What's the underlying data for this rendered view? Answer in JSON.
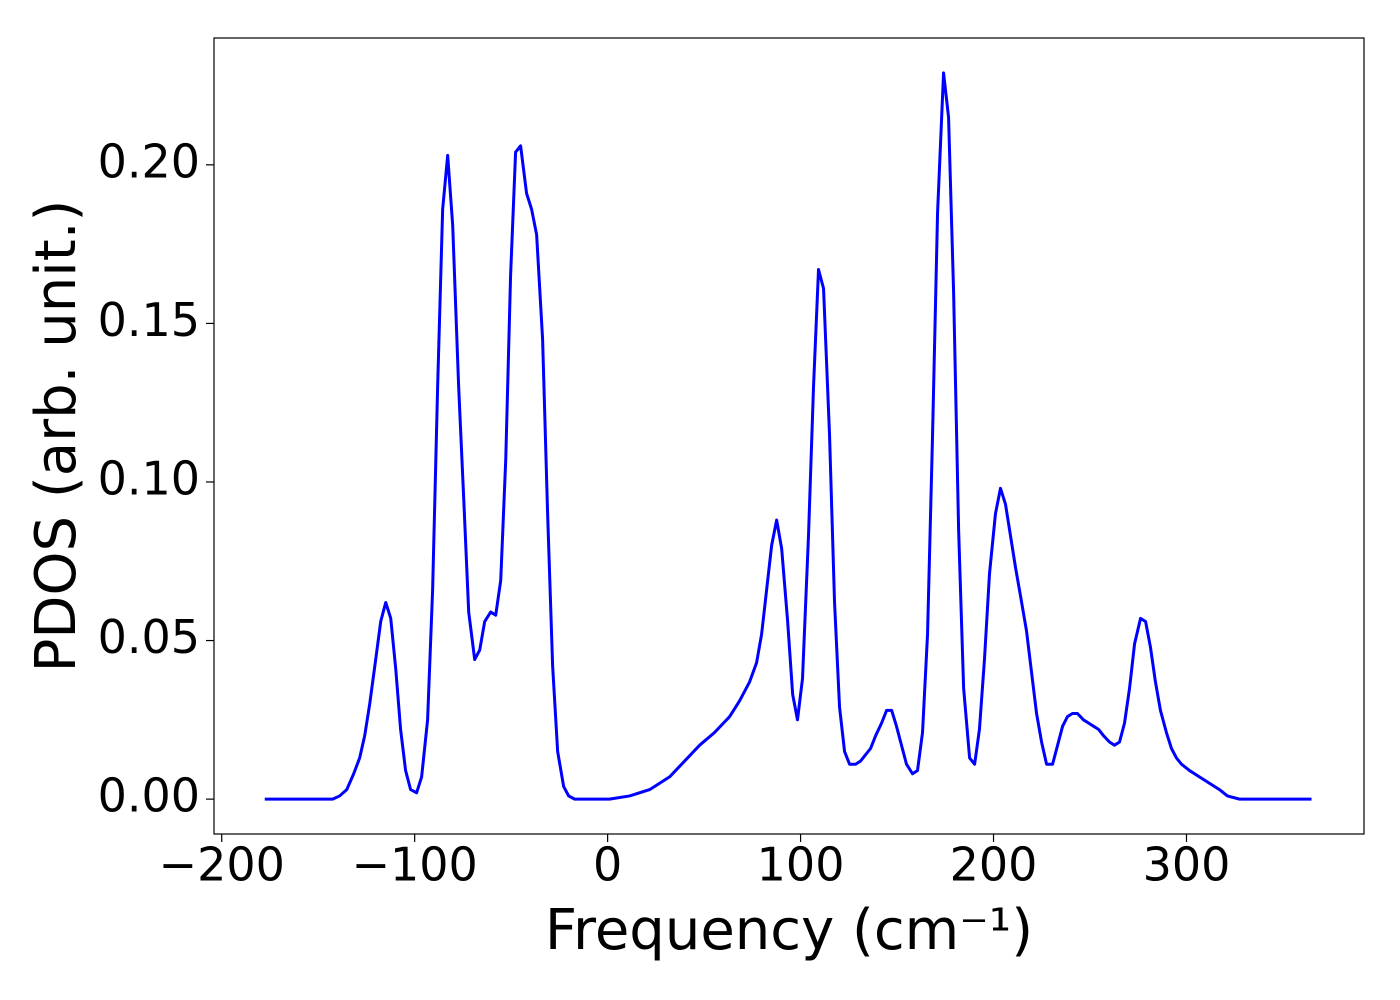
{
  "chart_data": {
    "type": "line",
    "xlabel": "Frequency (cm⁻¹)",
    "ylabel": "PDOS (arb. unit.)",
    "color": "#0000ff",
    "xlim": [
      -204,
      392
    ],
    "ylim": [
      -0.011,
      0.24
    ],
    "xticks": [
      {
        "value": -200,
        "label": "−200"
      },
      {
        "value": -100,
        "label": "−100"
      },
      0,
      100,
      200,
      300
    ],
    "yticks": [
      {
        "value": 0,
        "label": "0.00"
      },
      {
        "value": 0.05,
        "label": "0.05"
      },
      {
        "value": 0.1,
        "label": "0.10"
      },
      {
        "value": 0.15,
        "label": "0.15"
      },
      {
        "value": 0.2,
        "label": "0.20"
      }
    ],
    "grid": false,
    "x": [
      -177.7,
      -142.5,
      -138.9,
      -135.2,
      -131.6,
      -128.5,
      -125.9,
      -123.3,
      -120.2,
      -117.6,
      -115.0,
      -112.4,
      -109.8,
      -107.3,
      -104.7,
      -102.1,
      -99.0,
      -96.4,
      -93.3,
      -90.7,
      -88.1,
      -85.5,
      -82.9,
      -80.3,
      -77.2,
      -74.6,
      -72.0,
      -68.9,
      -66.3,
      -63.7,
      -60.6,
      -58.0,
      -55.4,
      -52.8,
      -50.3,
      -47.7,
      -45.1,
      -42.0,
      -39.4,
      -36.8,
      -33.7,
      -31.1,
      -28.5,
      -25.9,
      -22.8,
      -20.2,
      -17.1,
      1.0,
      11.4,
      21.8,
      32.1,
      39.9,
      47.7,
      55.4,
      63.2,
      68.4,
      73.6,
      77.2,
      79.8,
      82.4,
      85.0,
      87.6,
      90.2,
      93.3,
      95.9,
      98.4,
      101.0,
      104.1,
      106.7,
      109.3,
      111.9,
      115.0,
      117.6,
      120.2,
      122.8,
      125.4,
      128.5,
      131.1,
      133.7,
      136.3,
      138.9,
      142.0,
      144.6,
      147.2,
      149.7,
      152.3,
      154.9,
      158.0,
      160.6,
      163.2,
      165.8,
      168.4,
      171.0,
      174.1,
      176.7,
      179.3,
      181.9,
      184.5,
      187.6,
      190.2,
      192.7,
      195.3,
      197.9,
      201.0,
      203.6,
      206.2,
      208.8,
      211.4,
      214.0,
      217.1,
      219.7,
      222.3,
      224.9,
      227.5,
      230.6,
      233.2,
      235.8,
      238.3,
      240.9,
      243.5,
      246.6,
      249.2,
      251.8,
      254.4,
      257.0,
      260.1,
      262.7,
      265.3,
      267.9,
      270.5,
      273.1,
      276.2,
      278.8,
      281.3,
      283.9,
      286.5,
      289.6,
      292.2,
      294.8,
      297.4,
      301.6,
      306.7,
      311.9,
      317.1,
      321.2,
      327.5,
      364.8
    ],
    "values": [
      0,
      0,
      0.001,
      0.003,
      0.008,
      0.013,
      0.02,
      0.03,
      0.044,
      0.056,
      0.062,
      0.057,
      0.041,
      0.022,
      0.009,
      0.003,
      0.002,
      0.007,
      0.025,
      0.066,
      0.13,
      0.186,
      0.203,
      0.181,
      0.13,
      0.095,
      0.059,
      0.044,
      0.047,
      0.056,
      0.059,
      0.058,
      0.069,
      0.107,
      0.165,
      0.204,
      0.206,
      0.191,
      0.186,
      0.178,
      0.145,
      0.09,
      0.042,
      0.015,
      0.004,
      0.001,
      0,
      0,
      0.001,
      0.003,
      0.007,
      0.012,
      0.017,
      0.021,
      0.026,
      0.031,
      0.037,
      0.043,
      0.052,
      0.066,
      0.08,
      0.088,
      0.079,
      0.056,
      0.033,
      0.025,
      0.038,
      0.083,
      0.13,
      0.167,
      0.161,
      0.115,
      0.062,
      0.029,
      0.015,
      0.011,
      0.011,
      0.012,
      0.014,
      0.016,
      0.02,
      0.024,
      0.028,
      0.028,
      0.023,
      0.017,
      0.011,
      0.008,
      0.009,
      0.021,
      0.052,
      0.115,
      0.185,
      0.229,
      0.215,
      0.16,
      0.085,
      0.035,
      0.013,
      0.011,
      0.022,
      0.044,
      0.071,
      0.09,
      0.098,
      0.093,
      0.083,
      0.073,
      0.064,
      0.053,
      0.04,
      0.027,
      0.018,
      0.011,
      0.011,
      0.017,
      0.023,
      0.026,
      0.027,
      0.027,
      0.025,
      0.024,
      0.023,
      0.022,
      0.02,
      0.018,
      0.017,
      0.018,
      0.024,
      0.035,
      0.049,
      0.057,
      0.056,
      0.048,
      0.037,
      0.028,
      0.021,
      0.016,
      0.013,
      0.011,
      0.009,
      0.007,
      0.005,
      0.003,
      0.001,
      0,
      0
    ]
  }
}
